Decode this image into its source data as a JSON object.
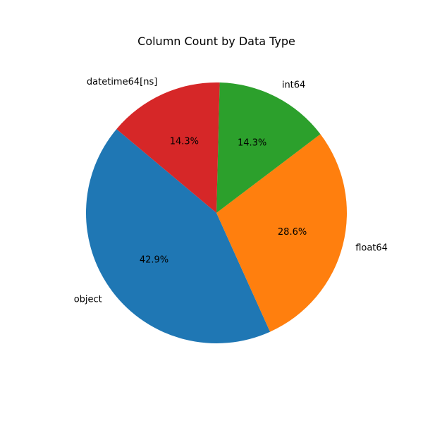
{
  "chart_data": {
    "type": "pie",
    "title": "Column Count by Data Type",
    "categories": [
      "object",
      "float64",
      "int64",
      "datetime64[ns]"
    ],
    "values": [
      3,
      2,
      1,
      1
    ],
    "percent_labels": [
      "42.9%",
      "28.6%",
      "14.3%",
      "14.3%"
    ],
    "colors": [
      "#1f77b4",
      "#ff7f0e",
      "#2ca02c",
      "#d62728"
    ],
    "start_angle_deg": 140,
    "direction": "counterclockwise",
    "legend": "none"
  }
}
